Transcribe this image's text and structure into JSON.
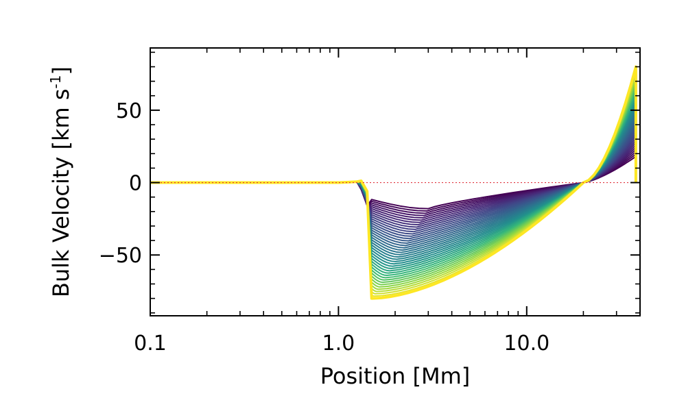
{
  "chart_data": {
    "type": "line",
    "xlabel": "Position [Mm]",
    "ylabel_main": "Bulk Velocity [km s",
    "ylabel_sup": "-1",
    "ylabel_tail": "]",
    "x_scale": "log",
    "xlim": [
      0.1,
      40
    ],
    "ylim": [
      -92,
      93
    ],
    "x_ticks": [
      {
        "value": 0.1,
        "label": "0.1"
      },
      {
        "value": 1.0,
        "label": "1.0"
      },
      {
        "value": 10.0,
        "label": "10.0"
      }
    ],
    "y_ticks": [
      {
        "value": -50,
        "label": "−50"
      },
      {
        "value": 0,
        "label": "0"
      },
      {
        "value": 50,
        "label": "50"
      }
    ],
    "zero_line": {
      "y": 0,
      "color": "#e0303b",
      "style": "dotted"
    },
    "colormap": "viridis",
    "series_count": 40,
    "series_model": {
      "description": "family of velocity profiles evolving in time",
      "shock_position_mm": 1.5,
      "precursor_dip_position_mm": 1.3,
      "zero_crossing_mm": 20,
      "right_edge_mm": 38,
      "min_velocity_first": -18,
      "min_velocity_last": -80,
      "min_position_first_mm": 3.0,
      "peak_velocity_first": 18,
      "peak_velocity_last": 80
    },
    "grid": false,
    "legend": "none"
  }
}
